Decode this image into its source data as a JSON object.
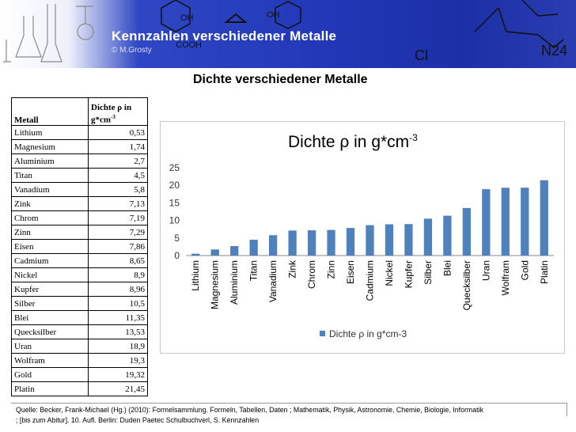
{
  "header": {
    "title": "Kennzahlen verschiedener Metalle",
    "subtitle": "© M.Grosty"
  },
  "page_title": "Dichte verschiedener Metalle",
  "table": {
    "col1_header": "Metall",
    "col2_header_line1": "Dichte ρ in",
    "col2_header_line2": "g*cm",
    "col2_header_sup": "-3",
    "rows": [
      {
        "name": "Lithium",
        "value": "0,53"
      },
      {
        "name": "Magnesium",
        "value": "1,74"
      },
      {
        "name": "Aluminium",
        "value": "2,7"
      },
      {
        "name": "Titan",
        "value": "4,5"
      },
      {
        "name": "Vanadium",
        "value": "5,8"
      },
      {
        "name": "Zink",
        "value": "7,13"
      },
      {
        "name": "Chrom",
        "value": "7,19"
      },
      {
        "name": "Zinn",
        "value": "7,29"
      },
      {
        "name": "Eisen",
        "value": "7,86"
      },
      {
        "name": "Cadmium",
        "value": "8,65"
      },
      {
        "name": "Nickel",
        "value": "8,9"
      },
      {
        "name": "Kupfer",
        "value": "8,96"
      },
      {
        "name": "Silber",
        "value": "10,5"
      },
      {
        "name": "Blei",
        "value": "11,35"
      },
      {
        "name": "Quecksilber",
        "value": "13,53"
      },
      {
        "name": "Uran",
        "value": "18,9"
      },
      {
        "name": "Wolfram",
        "value": "19,3"
      },
      {
        "name": "Gold",
        "value": "19,32"
      },
      {
        "name": "Platin",
        "value": "21,45"
      }
    ]
  },
  "chart_data": {
    "type": "bar",
    "title": "Dichte ρ in g*cm",
    "title_sup": "-3",
    "categories": [
      "Lithium",
      "Magnesium",
      "Aluminium",
      "Titan",
      "Vanadium",
      "Zink",
      "Chrom",
      "Zinn",
      "Eisen",
      "Cadmium",
      "Nickel",
      "Kupfer",
      "Silber",
      "Blei",
      "Quecksilber",
      "Uran",
      "Wolfram",
      "Gold",
      "Platin"
    ],
    "series": [
      {
        "name": "Dichte ρ in g*cm-3",
        "values": [
          0.53,
          1.74,
          2.7,
          4.5,
          5.8,
          7.13,
          7.19,
          7.29,
          7.86,
          8.65,
          8.9,
          8.96,
          10.5,
          11.35,
          13.53,
          18.9,
          19.3,
          19.32,
          21.45
        ],
        "color": "#4f81bd"
      }
    ],
    "ylim": [
      0,
      25
    ],
    "yticks": [
      0,
      5,
      10,
      15,
      20,
      25
    ],
    "grid": false,
    "legend_position": "bottom"
  },
  "footer": {
    "line1": "Quelle: Becker, Frank-Michael (Hg.) (2010): Formelsammlung. Formeln, Tabellen, Daten ; Mathematik, Physik, Astronomie, Chemie, Biologie, Informatik",
    "line2": "; [bis zum Abitur]. 10. Aufl. Berlin: Duden Paetec Schulbuchverl, S. Kennzahlen"
  },
  "decor": {
    "oh1": "OH",
    "oh2": "OH",
    "cooh": "COOH",
    "cl": "Cl",
    "n24": "N24"
  }
}
